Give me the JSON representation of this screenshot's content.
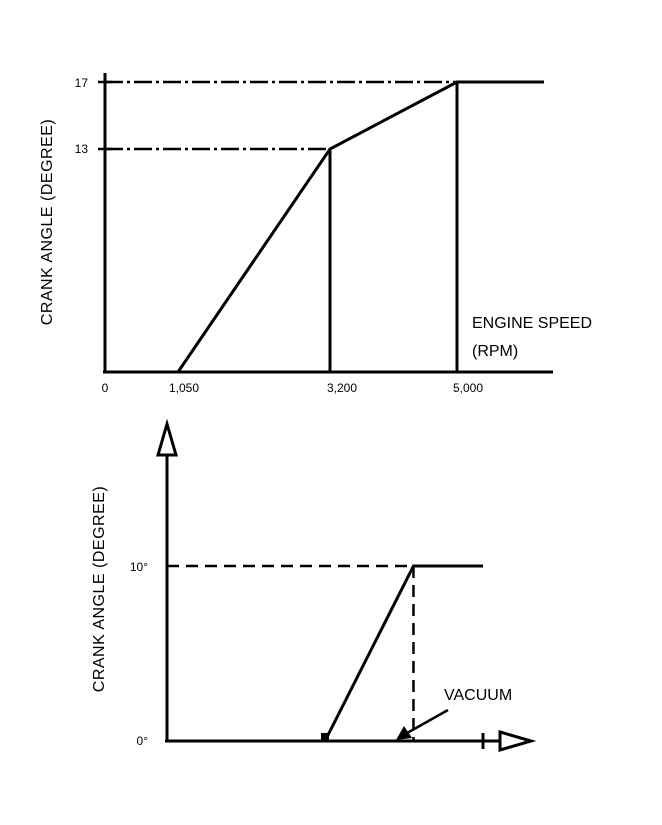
{
  "chart_data": [
    {
      "type": "line",
      "title": "",
      "ylabel": "CRANK ANGLE (DEGREE)",
      "xlabel": "ENGINE SPEED",
      "xlabel_unit": "(RPM)",
      "xlim": [
        0,
        6000
      ],
      "ylim": [
        0,
        17
      ],
      "x_ticks": [
        "0",
        "1,050",
        "3,200",
        "5,000"
      ],
      "y_ticks": [
        "13",
        "17"
      ],
      "series": [
        {
          "points": [
            [
              1050,
              0
            ],
            [
              3200,
              13
            ],
            [
              5000,
              17
            ],
            [
              6000,
              17
            ]
          ]
        }
      ],
      "grid": false
    },
    {
      "type": "line",
      "title": "",
      "ylabel": "CRANK ANGLE (DEGREE)",
      "xlabel": "",
      "annotation": "VACUUM",
      "ylim": [
        0,
        10
      ],
      "xlim": [
        0,
        10
      ],
      "y_ticks": [
        "0°",
        "10°"
      ],
      "series": [
        {
          "points": [
            [
              5.0,
              0
            ],
            [
              7.8,
              10
            ],
            [
              10,
              10
            ]
          ]
        }
      ],
      "grid": false
    }
  ]
}
